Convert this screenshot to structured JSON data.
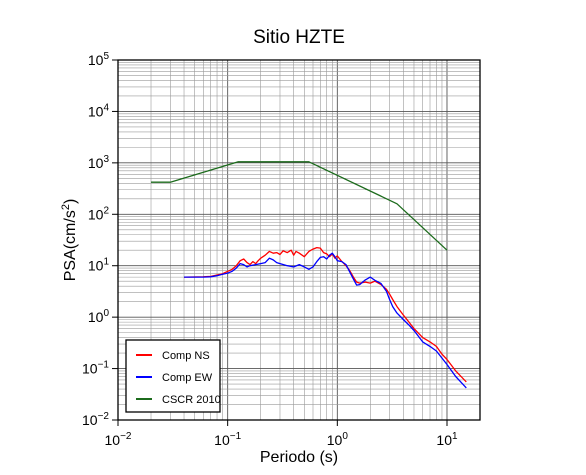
{
  "chart_data": {
    "type": "line",
    "title": "Sitio HZTE",
    "xlabel": "Periodo (s)",
    "ylabel_main": "PSA(cm/s",
    "ylabel_sup": "2",
    "ylabel_tail": ")",
    "x_scale": "log",
    "y_scale": "log",
    "xlim": [
      0.01,
      20
    ],
    "ylim": [
      0.01,
      100000
    ],
    "x_ticks": [
      {
        "value": 0.01,
        "base": "10",
        "exp": "−2"
      },
      {
        "value": 0.1,
        "base": "10",
        "exp": "−1"
      },
      {
        "value": 1,
        "base": "10",
        "exp": "0"
      },
      {
        "value": 10,
        "base": "10",
        "exp": "1"
      }
    ],
    "y_ticks": [
      {
        "value": 0.01,
        "base": "10",
        "exp": "−2"
      },
      {
        "value": 0.1,
        "base": "10",
        "exp": "−1"
      },
      {
        "value": 1,
        "base": "10",
        "exp": "0"
      },
      {
        "value": 10,
        "base": "10",
        "exp": "1"
      },
      {
        "value": 100,
        "base": "10",
        "exp": "2"
      },
      {
        "value": 1000,
        "base": "10",
        "exp": "3"
      },
      {
        "value": 10000,
        "base": "10",
        "exp": "4"
      },
      {
        "value": 100000,
        "base": "10",
        "exp": "5"
      }
    ],
    "grid": true,
    "legend_position": "bottom-left",
    "series": [
      {
        "name": "Comp NS",
        "color": "#ff0000",
        "points": [
          [
            0.04,
            6.0
          ],
          [
            0.06,
            6.1
          ],
          [
            0.07,
            6.2
          ],
          [
            0.08,
            6.6
          ],
          [
            0.09,
            7.0
          ],
          [
            0.1,
            7.8
          ],
          [
            0.11,
            8.5
          ],
          [
            0.12,
            10.0
          ],
          [
            0.13,
            12.5
          ],
          [
            0.14,
            13.5
          ],
          [
            0.15,
            11.5
          ],
          [
            0.16,
            10.5
          ],
          [
            0.17,
            12.0
          ],
          [
            0.18,
            11.0
          ],
          [
            0.19,
            12.5
          ],
          [
            0.2,
            14.0
          ],
          [
            0.22,
            16.0
          ],
          [
            0.24,
            19.0
          ],
          [
            0.26,
            17.5
          ],
          [
            0.28,
            18.0
          ],
          [
            0.3,
            16.5
          ],
          [
            0.32,
            19.5
          ],
          [
            0.35,
            18.0
          ],
          [
            0.38,
            20.0
          ],
          [
            0.4,
            16.0
          ],
          [
            0.42,
            19.0
          ],
          [
            0.45,
            17.5
          ],
          [
            0.5,
            15.0
          ],
          [
            0.55,
            19.0
          ],
          [
            0.6,
            21.0
          ],
          [
            0.65,
            22.5
          ],
          [
            0.7,
            22.0
          ],
          [
            0.75,
            18.0
          ],
          [
            0.8,
            17.0
          ],
          [
            0.85,
            15.0
          ],
          [
            0.9,
            17.0
          ],
          [
            0.95,
            14.0
          ],
          [
            1.0,
            15.5
          ],
          [
            1.1,
            12.0
          ],
          [
            1.2,
            10.0
          ],
          [
            1.3,
            8.0
          ],
          [
            1.4,
            6.0
          ],
          [
            1.5,
            4.8
          ],
          [
            1.6,
            4.6
          ],
          [
            1.8,
            4.8
          ],
          [
            2.0,
            4.6
          ],
          [
            2.2,
            5.0
          ],
          [
            2.5,
            4.3
          ],
          [
            2.8,
            3.5
          ],
          [
            3.0,
            2.8
          ],
          [
            3.2,
            2.2
          ],
          [
            3.5,
            1.6
          ],
          [
            4.0,
            1.1
          ],
          [
            4.5,
            0.8
          ],
          [
            5.0,
            0.6
          ],
          [
            6.0,
            0.4
          ],
          [
            7.0,
            0.33
          ],
          [
            8.0,
            0.27
          ],
          [
            9.0,
            0.19
          ],
          [
            10.0,
            0.15
          ],
          [
            12.0,
            0.09
          ],
          [
            15.0,
            0.055
          ]
        ]
      },
      {
        "name": "Comp EW",
        "color": "#0000ff",
        "points": [
          [
            0.04,
            6.0
          ],
          [
            0.06,
            6.0
          ],
          [
            0.07,
            6.1
          ],
          [
            0.08,
            6.4
          ],
          [
            0.09,
            6.8
          ],
          [
            0.1,
            7.2
          ],
          [
            0.11,
            7.8
          ],
          [
            0.12,
            9.0
          ],
          [
            0.13,
            11.0
          ],
          [
            0.14,
            10.5
          ],
          [
            0.15,
            9.5
          ],
          [
            0.16,
            10.0
          ],
          [
            0.18,
            10.5
          ],
          [
            0.2,
            11.0
          ],
          [
            0.22,
            11.5
          ],
          [
            0.24,
            14.0
          ],
          [
            0.26,
            13.0
          ],
          [
            0.28,
            11.5
          ],
          [
            0.3,
            11.0
          ],
          [
            0.35,
            10.0
          ],
          [
            0.4,
            9.5
          ],
          [
            0.45,
            10.5
          ],
          [
            0.5,
            9.5
          ],
          [
            0.55,
            8.5
          ],
          [
            0.6,
            9.5
          ],
          [
            0.65,
            12.0
          ],
          [
            0.7,
            14.5
          ],
          [
            0.75,
            15.0
          ],
          [
            0.8,
            13.5
          ],
          [
            0.85,
            16.0
          ],
          [
            0.9,
            17.5
          ],
          [
            0.95,
            15.0
          ],
          [
            1.0,
            12.5
          ],
          [
            1.1,
            12.0
          ],
          [
            1.2,
            10.5
          ],
          [
            1.3,
            7.5
          ],
          [
            1.4,
            5.5
          ],
          [
            1.5,
            4.2
          ],
          [
            1.6,
            4.3
          ],
          [
            1.8,
            5.3
          ],
          [
            2.0,
            6.0
          ],
          [
            2.2,
            5.2
          ],
          [
            2.5,
            4.5
          ],
          [
            2.8,
            3.2
          ],
          [
            3.0,
            2.2
          ],
          [
            3.2,
            1.6
          ],
          [
            3.5,
            1.2
          ],
          [
            4.0,
            0.9
          ],
          [
            4.5,
            0.7
          ],
          [
            5.0,
            0.55
          ],
          [
            6.0,
            0.33
          ],
          [
            7.0,
            0.27
          ],
          [
            8.0,
            0.22
          ],
          [
            9.0,
            0.16
          ],
          [
            10.0,
            0.12
          ],
          [
            12.0,
            0.07
          ],
          [
            15.0,
            0.042
          ]
        ]
      },
      {
        "name": "CSCR 2010",
        "color": "#1c6b1c",
        "points": [
          [
            0.02,
            420
          ],
          [
            0.03,
            420
          ],
          [
            0.125,
            1050
          ],
          [
            0.55,
            1050
          ],
          [
            3.5,
            160
          ],
          [
            10,
            20
          ]
        ]
      }
    ]
  }
}
